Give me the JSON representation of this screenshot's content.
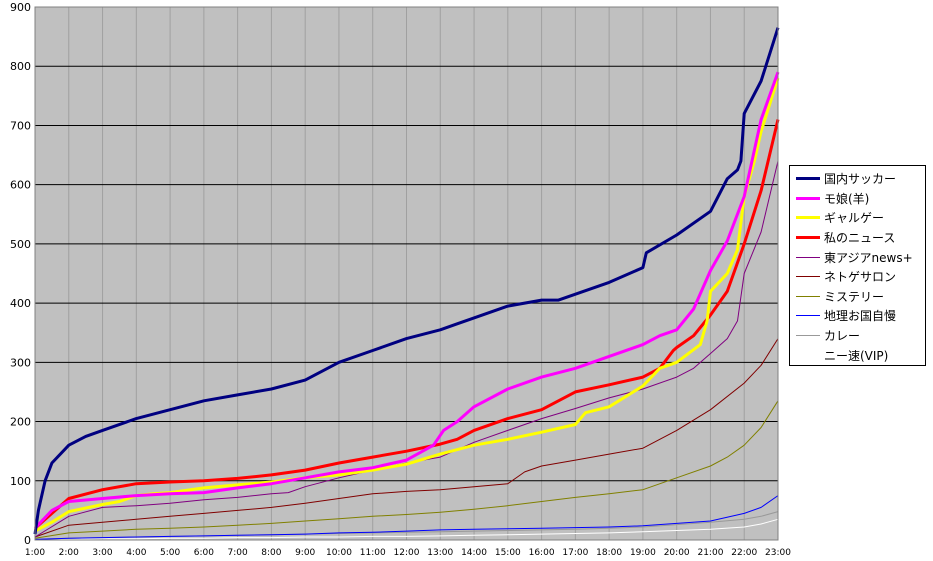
{
  "chart_data": {
    "type": "line",
    "title": "",
    "xlabel": "",
    "ylabel": "",
    "ylim": [
      0,
      900
    ],
    "yticks": [
      0,
      100,
      200,
      300,
      400,
      500,
      600,
      700,
      800,
      900
    ],
    "x_labels": [
      "1:00",
      "2:00",
      "3:00",
      "4:00",
      "5:00",
      "6:00",
      "7:00",
      "8:00",
      "9:00",
      "10:00",
      "11:00",
      "12:00",
      "13:00",
      "14:00",
      "15:00",
      "16:00",
      "17:00",
      "18:00",
      "19:00",
      "20:00",
      "21:00",
      "22:00",
      "23:00"
    ],
    "x_range": [
      1,
      23
    ],
    "grid": true,
    "legend_position": "right",
    "series": [
      {
        "name": "国内サッカー",
        "color": "#000080",
        "width": 3,
        "x": [
          1,
          1.1,
          1.3,
          1.5,
          2,
          2.5,
          3,
          4,
          5,
          6,
          7,
          8,
          9,
          9.5,
          10,
          11,
          12,
          13,
          13.5,
          14,
          15,
          16,
          16.5,
          17,
          18,
          19,
          19.1,
          20,
          21,
          21.5,
          21.8,
          21.9,
          22,
          22.5,
          23
        ],
        "values": [
          10,
          50,
          100,
          130,
          160,
          175,
          185,
          205,
          220,
          235,
          245,
          255,
          270,
          285,
          300,
          320,
          340,
          355,
          365,
          375,
          395,
          405,
          405,
          415,
          435,
          460,
          485,
          515,
          555,
          610,
          625,
          640,
          720,
          775,
          865
        ]
      },
      {
        "name": "モ娘(羊)",
        "color": "#ff00ff",
        "width": 3,
        "x": [
          1,
          1.5,
          2,
          3,
          4,
          5,
          6,
          7,
          8,
          9,
          10,
          11,
          12,
          12.8,
          13.1,
          13.5,
          14,
          15,
          16,
          17,
          18,
          19,
          19.5,
          20,
          20.5,
          21,
          21.5,
          22,
          22.5,
          23
        ],
        "values": [
          20,
          50,
          65,
          70,
          75,
          78,
          80,
          88,
          95,
          105,
          115,
          122,
          135,
          160,
          185,
          200,
          225,
          255,
          275,
          290,
          310,
          330,
          345,
          355,
          390,
          455,
          505,
          580,
          710,
          790
        ]
      },
      {
        "name": "ギャルゲー",
        "color": "#ffff00",
        "width": 3,
        "x": [
          1,
          1.5,
          2,
          3,
          3.5,
          4,
          4.5,
          5,
          6,
          7,
          8,
          9,
          10,
          11,
          12,
          13,
          14,
          15,
          16,
          17,
          17.3,
          18,
          19,
          19.5,
          20,
          20.7,
          20.9,
          21,
          21.5,
          21.8,
          22,
          22.3,
          22.5,
          23
        ],
        "values": [
          15,
          30,
          48,
          60,
          65,
          75,
          78,
          80,
          88,
          93,
          98,
          105,
          110,
          118,
          128,
          145,
          160,
          170,
          182,
          195,
          215,
          225,
          260,
          290,
          300,
          330,
          370,
          420,
          450,
          490,
          580,
          640,
          690,
          780
        ]
      },
      {
        "name": "私のニュース",
        "color": "#ff0000",
        "width": 3,
        "x": [
          1,
          1.5,
          2,
          3,
          4,
          5,
          6,
          7,
          8,
          9,
          10,
          11,
          12,
          13,
          13.5,
          14,
          15,
          16,
          16.5,
          17,
          18,
          19,
          19.5,
          19.9,
          20,
          20.5,
          21,
          21.5,
          22,
          22.5,
          23
        ],
        "values": [
          20,
          45,
          70,
          85,
          95,
          98,
          100,
          104,
          110,
          118,
          130,
          140,
          150,
          162,
          170,
          185,
          205,
          220,
          235,
          250,
          262,
          275,
          290,
          320,
          325,
          345,
          380,
          420,
          500,
          590,
          710
        ]
      },
      {
        "name": "東アジアnews+",
        "color": "#800080",
        "width": 1,
        "x": [
          1,
          2,
          3,
          4,
          5,
          6,
          7,
          8,
          8.5,
          9,
          10,
          11,
          12,
          13,
          14,
          15,
          16,
          17,
          18,
          19,
          20,
          20.5,
          21,
          21.5,
          21.8,
          22,
          22.5,
          23
        ],
        "values": [
          5,
          40,
          55,
          58,
          62,
          68,
          72,
          78,
          80,
          90,
          105,
          118,
          130,
          140,
          165,
          185,
          205,
          222,
          240,
          255,
          275,
          290,
          315,
          340,
          370,
          450,
          520,
          640
        ]
      },
      {
        "name": "ネトゲサロン",
        "color": "#800000",
        "width": 1,
        "x": [
          1,
          2,
          3,
          4,
          5,
          6,
          7,
          8,
          9,
          10,
          11,
          12,
          13,
          14,
          15,
          15.5,
          16,
          17,
          18,
          19,
          20,
          21,
          22,
          22.5,
          23
        ],
        "values": [
          5,
          25,
          30,
          35,
          40,
          45,
          50,
          55,
          62,
          70,
          78,
          82,
          85,
          90,
          95,
          115,
          125,
          135,
          145,
          155,
          185,
          220,
          265,
          295,
          340
        ]
      },
      {
        "name": "ミステリー",
        "color": "#808000",
        "width": 1,
        "x": [
          1,
          2,
          3,
          4,
          5,
          6,
          7,
          8,
          9,
          10,
          11,
          12,
          13,
          14,
          15,
          16,
          17,
          18,
          19,
          20,
          21,
          21.5,
          22,
          22.5,
          23
        ],
        "values": [
          3,
          12,
          15,
          18,
          20,
          22,
          25,
          28,
          32,
          36,
          40,
          43,
          47,
          52,
          58,
          65,
          72,
          78,
          85,
          105,
          125,
          140,
          160,
          190,
          235
        ]
      },
      {
        "name": "地理お国自慢",
        "color": "#0000ff",
        "width": 1,
        "x": [
          1,
          2,
          3,
          4,
          5,
          6,
          7,
          8,
          9,
          10,
          11,
          12,
          13,
          14,
          15,
          16,
          17,
          18,
          19,
          20,
          21,
          22,
          22.5,
          23
        ],
        "values": [
          1,
          3,
          4,
          5,
          6,
          7,
          8,
          9,
          10,
          12,
          13,
          15,
          17,
          18,
          19,
          20,
          21,
          22,
          24,
          28,
          32,
          45,
          55,
          75
        ]
      },
      {
        "name": "カレー",
        "color": "#999999",
        "width": 1,
        "x": [
          1,
          2,
          3,
          4,
          5,
          6,
          7,
          8,
          9,
          10,
          11,
          12,
          13,
          14,
          15,
          16,
          17,
          18,
          19,
          20,
          21,
          22,
          22.5,
          23
        ],
        "values": [
          1,
          3,
          4,
          5,
          6,
          7,
          8,
          9,
          10,
          11,
          12,
          13,
          14,
          15,
          16,
          17,
          18,
          20,
          22,
          26,
          30,
          35,
          40,
          48
        ]
      },
      {
        "name": "ニー速(VIP)",
        "color": "#ffffff",
        "width": 1,
        "x": [
          1,
          2,
          3,
          4,
          5,
          6,
          7,
          8,
          9,
          10,
          11,
          12,
          13,
          14,
          15,
          16,
          17,
          18,
          19,
          20,
          21,
          22,
          22.5,
          23
        ],
        "values": [
          0,
          1,
          2,
          2,
          3,
          3,
          4,
          4,
          5,
          5,
          6,
          6,
          7,
          8,
          9,
          10,
          11,
          12,
          14,
          16,
          18,
          22,
          27,
          35
        ]
      }
    ]
  }
}
